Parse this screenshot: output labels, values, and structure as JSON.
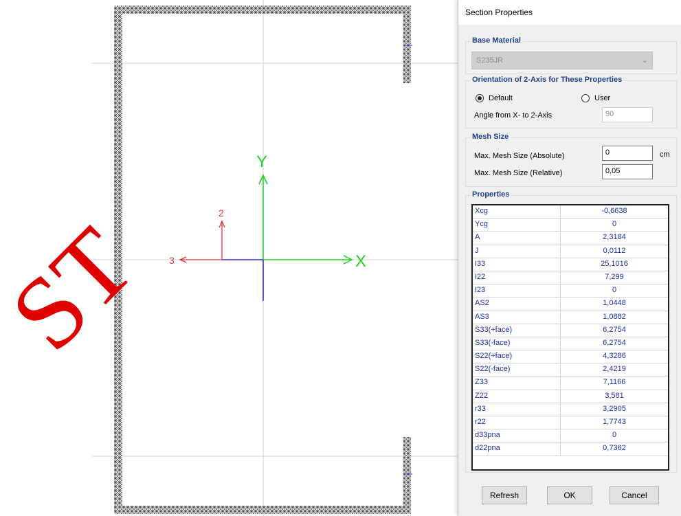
{
  "canvas": {
    "axis_labels": {
      "x": "X",
      "y": "Y",
      "local2": "2",
      "local3": "3"
    },
    "watermark": "ST",
    "colors": {
      "global_axes": "#21d321",
      "local_axes": "#e83030",
      "neg_axes": "#2a2ad6",
      "mesh": "#555555"
    }
  },
  "dialog": {
    "title": "Section Properties",
    "base_material": {
      "legend": "Base Material",
      "value": "S235JR"
    },
    "orientation": {
      "legend": "Orientation of 2-Axis for These Properties",
      "default_label": "Default",
      "user_label": "User",
      "selected": "Default",
      "angle_label": "Angle from X- to 2-Axis",
      "angle_value": "90"
    },
    "mesh": {
      "legend": "Mesh Size",
      "abs_label": "Max. Mesh Size (Absolute)",
      "abs_value": "0",
      "abs_unit": "cm",
      "rel_label": "Max. Mesh Size (Relative)",
      "rel_value": "0,05"
    },
    "properties": {
      "legend": "Properties",
      "rows": [
        {
          "name": "Xcg",
          "value": "-0,6638"
        },
        {
          "name": "Ycg",
          "value": "0"
        },
        {
          "name": "A",
          "value": "2,3184"
        },
        {
          "name": "J",
          "value": "0,0112"
        },
        {
          "name": "I33",
          "value": "25,1016"
        },
        {
          "name": "I22",
          "value": "7,299"
        },
        {
          "name": "I23",
          "value": "0"
        },
        {
          "name": "AS2",
          "value": "1,0448"
        },
        {
          "name": "AS3",
          "value": "1,0882"
        },
        {
          "name": "S33(+face)",
          "value": "6,2754"
        },
        {
          "name": "S33(-face)",
          "value": "6,2754"
        },
        {
          "name": "S22(+face)",
          "value": "4,3286"
        },
        {
          "name": "S22(-face)",
          "value": "2,4219"
        },
        {
          "name": "Z33",
          "value": "7,1166"
        },
        {
          "name": "Z22",
          "value": "3,581"
        },
        {
          "name": "r33",
          "value": "3,2905"
        },
        {
          "name": "r22",
          "value": "1,7743"
        },
        {
          "name": "d33pna",
          "value": "0"
        },
        {
          "name": "d22pna",
          "value": "0,7362"
        }
      ]
    },
    "buttons": {
      "refresh": "Refresh",
      "ok": "OK",
      "cancel": "Cancel"
    }
  }
}
